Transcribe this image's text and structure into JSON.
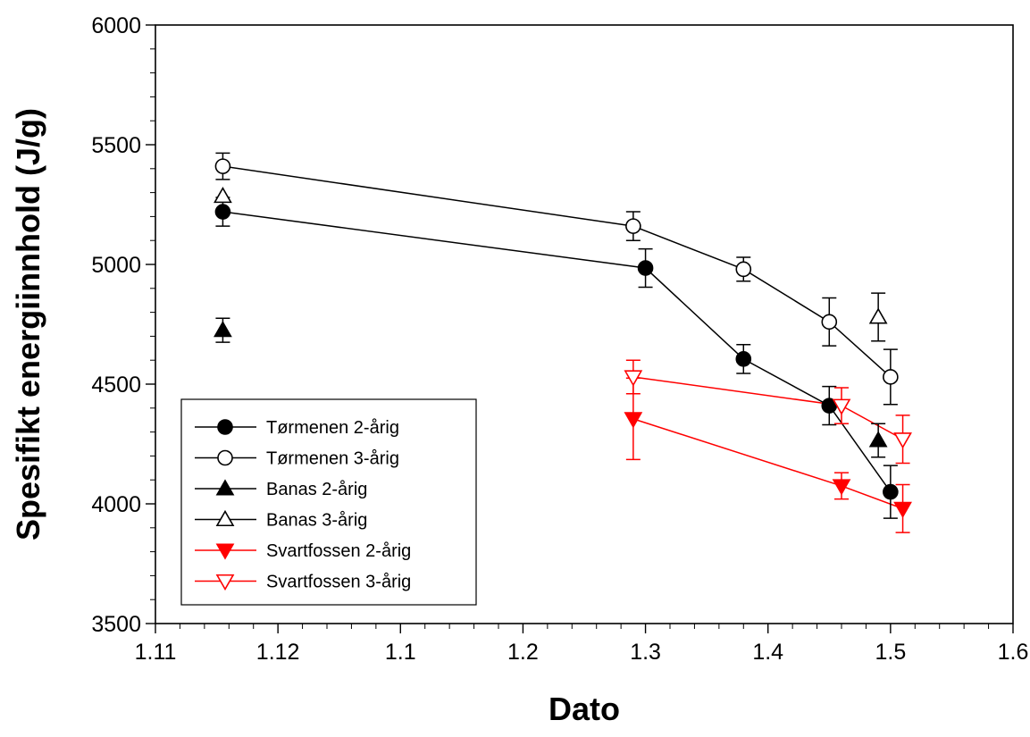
{
  "chart_data": {
    "type": "line",
    "title": "",
    "xlabel": "Dato",
    "ylabel": "Spesifikt energiinnhold (J/g)",
    "x_tick_labels": [
      "1.11",
      "1.12",
      "1.1",
      "1.2",
      "1.3",
      "1.4",
      "1.5",
      "1.6"
    ],
    "y_tick_labels": [
      "3500",
      "4000",
      "4500",
      "5000",
      "5500",
      "6000"
    ],
    "ylim": [
      3500,
      6000
    ],
    "legend_position": "bottom-left",
    "grid": false,
    "series": [
      {
        "name": "Tørmenen 2-årig",
        "color": "#000000",
        "marker": "circle",
        "filled": true,
        "connected": true,
        "points": [
          {
            "x": "1.12",
            "y": 5220,
            "err": 60
          },
          {
            "x": "1.3",
            "y": 4985,
            "err": 80
          },
          {
            "x": "1.38",
            "y": 4605,
            "err": 60
          },
          {
            "x": "1.45",
            "y": 4410,
            "err": 80
          },
          {
            "x": "1.5",
            "y": 4050,
            "err": 110
          }
        ]
      },
      {
        "name": "Tørmenen 3-årig",
        "color": "#000000",
        "marker": "circle",
        "filled": false,
        "connected": true,
        "points": [
          {
            "x": "1.12",
            "y": 5410,
            "err": 55
          },
          {
            "x": "1.29",
            "y": 5160,
            "err": 60
          },
          {
            "x": "1.38",
            "y": 4980,
            "err": 50
          },
          {
            "x": "1.45",
            "y": 4760,
            "err": 100
          },
          {
            "x": "1.5",
            "y": 4530,
            "err": 115
          }
        ]
      },
      {
        "name": "Banas 2-årig",
        "color": "#000000",
        "marker": "triangle-up",
        "filled": true,
        "connected": false,
        "points": [
          {
            "x": "1.12",
            "y": 4725,
            "err": 50
          },
          {
            "x": "1.49",
            "y": 4265,
            "err": 70
          }
        ]
      },
      {
        "name": "Banas 3-årig",
        "color": "#000000",
        "marker": "triangle-up",
        "filled": false,
        "connected": false,
        "points": [
          {
            "x": "1.12",
            "y": 5285,
            "err": 0
          },
          {
            "x": "1.49",
            "y": 4780,
            "err": 100
          }
        ]
      },
      {
        "name": "Svartfossen 2-årig",
        "color": "#ff0000",
        "marker": "triangle-down",
        "filled": true,
        "connected": true,
        "points": [
          {
            "x": "1.29",
            "y": 4355,
            "err": 170
          },
          {
            "x": "1.46",
            "y": 4075,
            "err": 55
          },
          {
            "x": "1.51",
            "y": 3980,
            "err": 100
          }
        ]
      },
      {
        "name": "Svartfossen 3-årig",
        "color": "#ff0000",
        "marker": "triangle-down",
        "filled": false,
        "connected": true,
        "points": [
          {
            "x": "1.29",
            "y": 4530,
            "err": 70
          },
          {
            "x": "1.46",
            "y": 4410,
            "err": 75
          },
          {
            "x": "1.51",
            "y": 4270,
            "err": 100
          }
        ]
      }
    ]
  }
}
